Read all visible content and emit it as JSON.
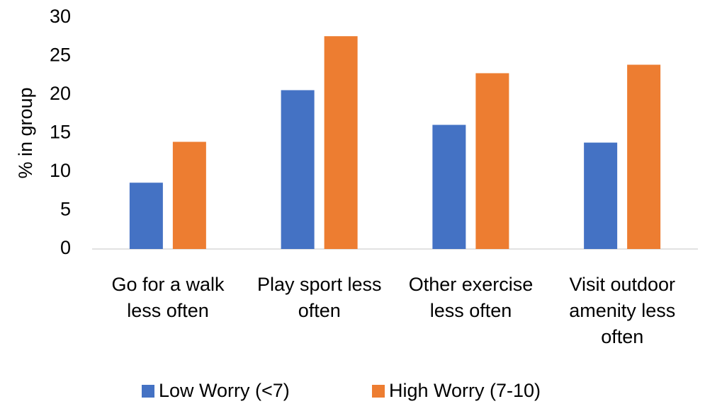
{
  "chart_data": {
    "type": "bar",
    "y_label": "% in group",
    "categories": [
      "Go for a walk less often",
      "Play sport less often",
      "Other exercise less often",
      "Visit outdoor amenity less often"
    ],
    "series": [
      {
        "name": "Low Worry (<7)",
        "color": "#4472c4",
        "values": [
          8.6,
          20.6,
          16.1,
          13.8
        ]
      },
      {
        "name": "High Worry (7-10)",
        "color": "#ed7d31",
        "values": [
          13.9,
          27.6,
          22.8,
          23.9
        ]
      }
    ],
    "ylim": [
      0,
      30
    ],
    "yticks": [
      0,
      5,
      10,
      15,
      20,
      25,
      30
    ],
    "grid": false,
    "legend": "bottom"
  }
}
